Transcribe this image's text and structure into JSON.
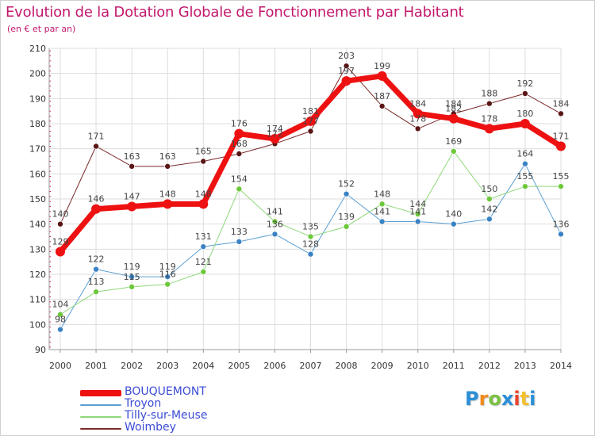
{
  "header": {
    "title": "Evolution de la Dotation Globale de Fonctionnement par Habitant",
    "subtitle": "(en € et par an)"
  },
  "brand": {
    "text": "Proxiti",
    "colors": [
      "#2a8fd8",
      "#f18a1c",
      "#7ac142",
      "#2a8fd8",
      "#e8452c",
      "#f2c12e",
      "#2a8fd8"
    ]
  },
  "chart_data": {
    "type": "line",
    "title": "Evolution de la Dotation Globale de Fonctionnement par Habitant",
    "subtitle": "(en € et par an)",
    "xlabel": "",
    "ylabel": "",
    "x": [
      "2000",
      "2001",
      "2002",
      "2003",
      "2004",
      "2005",
      "2006",
      "2007",
      "2008",
      "2009",
      "2010",
      "2011",
      "2012",
      "2013",
      "2014"
    ],
    "ylim": [
      90,
      210
    ],
    "yticks": [
      90,
      100,
      110,
      120,
      130,
      140,
      150,
      160,
      170,
      180,
      190,
      200,
      210
    ],
    "grid": true,
    "legend_position": "bottom-left",
    "series": [
      {
        "name": "Woimbey",
        "color": "#7a2a2a",
        "marker": "#5a1515",
        "width": 1,
        "values": [
          140,
          171,
          163,
          163,
          165,
          168,
          172,
          177,
          203,
          187,
          178,
          184,
          188,
          192,
          184
        ]
      },
      {
        "name": "Troyon",
        "color": "#5b9fd3",
        "marker": "#3b82c4",
        "width": 1,
        "values": [
          98,
          122,
          119,
          119,
          131,
          133,
          136,
          128,
          152,
          141,
          141,
          140,
          142,
          164,
          136
        ]
      },
      {
        "name": "Tilly-sur-Meuse",
        "color": "#8fd87a",
        "marker": "#6cc83a",
        "width": 1,
        "values": [
          104,
          113,
          115,
          116,
          121,
          154,
          141,
          135,
          139,
          148,
          144,
          169,
          150,
          155,
          155
        ]
      },
      {
        "name": "BOUQUEMONT",
        "color": "#ee1111",
        "marker": "#ee1111",
        "width": 7,
        "values": [
          129,
          146,
          147,
          148,
          148,
          176,
          174,
          181,
          197,
          199,
          184,
          182,
          178,
          180,
          171
        ]
      }
    ],
    "legend": [
      "BOUQUEMONT",
      "Troyon",
      "Tilly-sur-Meuse",
      "Woimbey"
    ]
  }
}
